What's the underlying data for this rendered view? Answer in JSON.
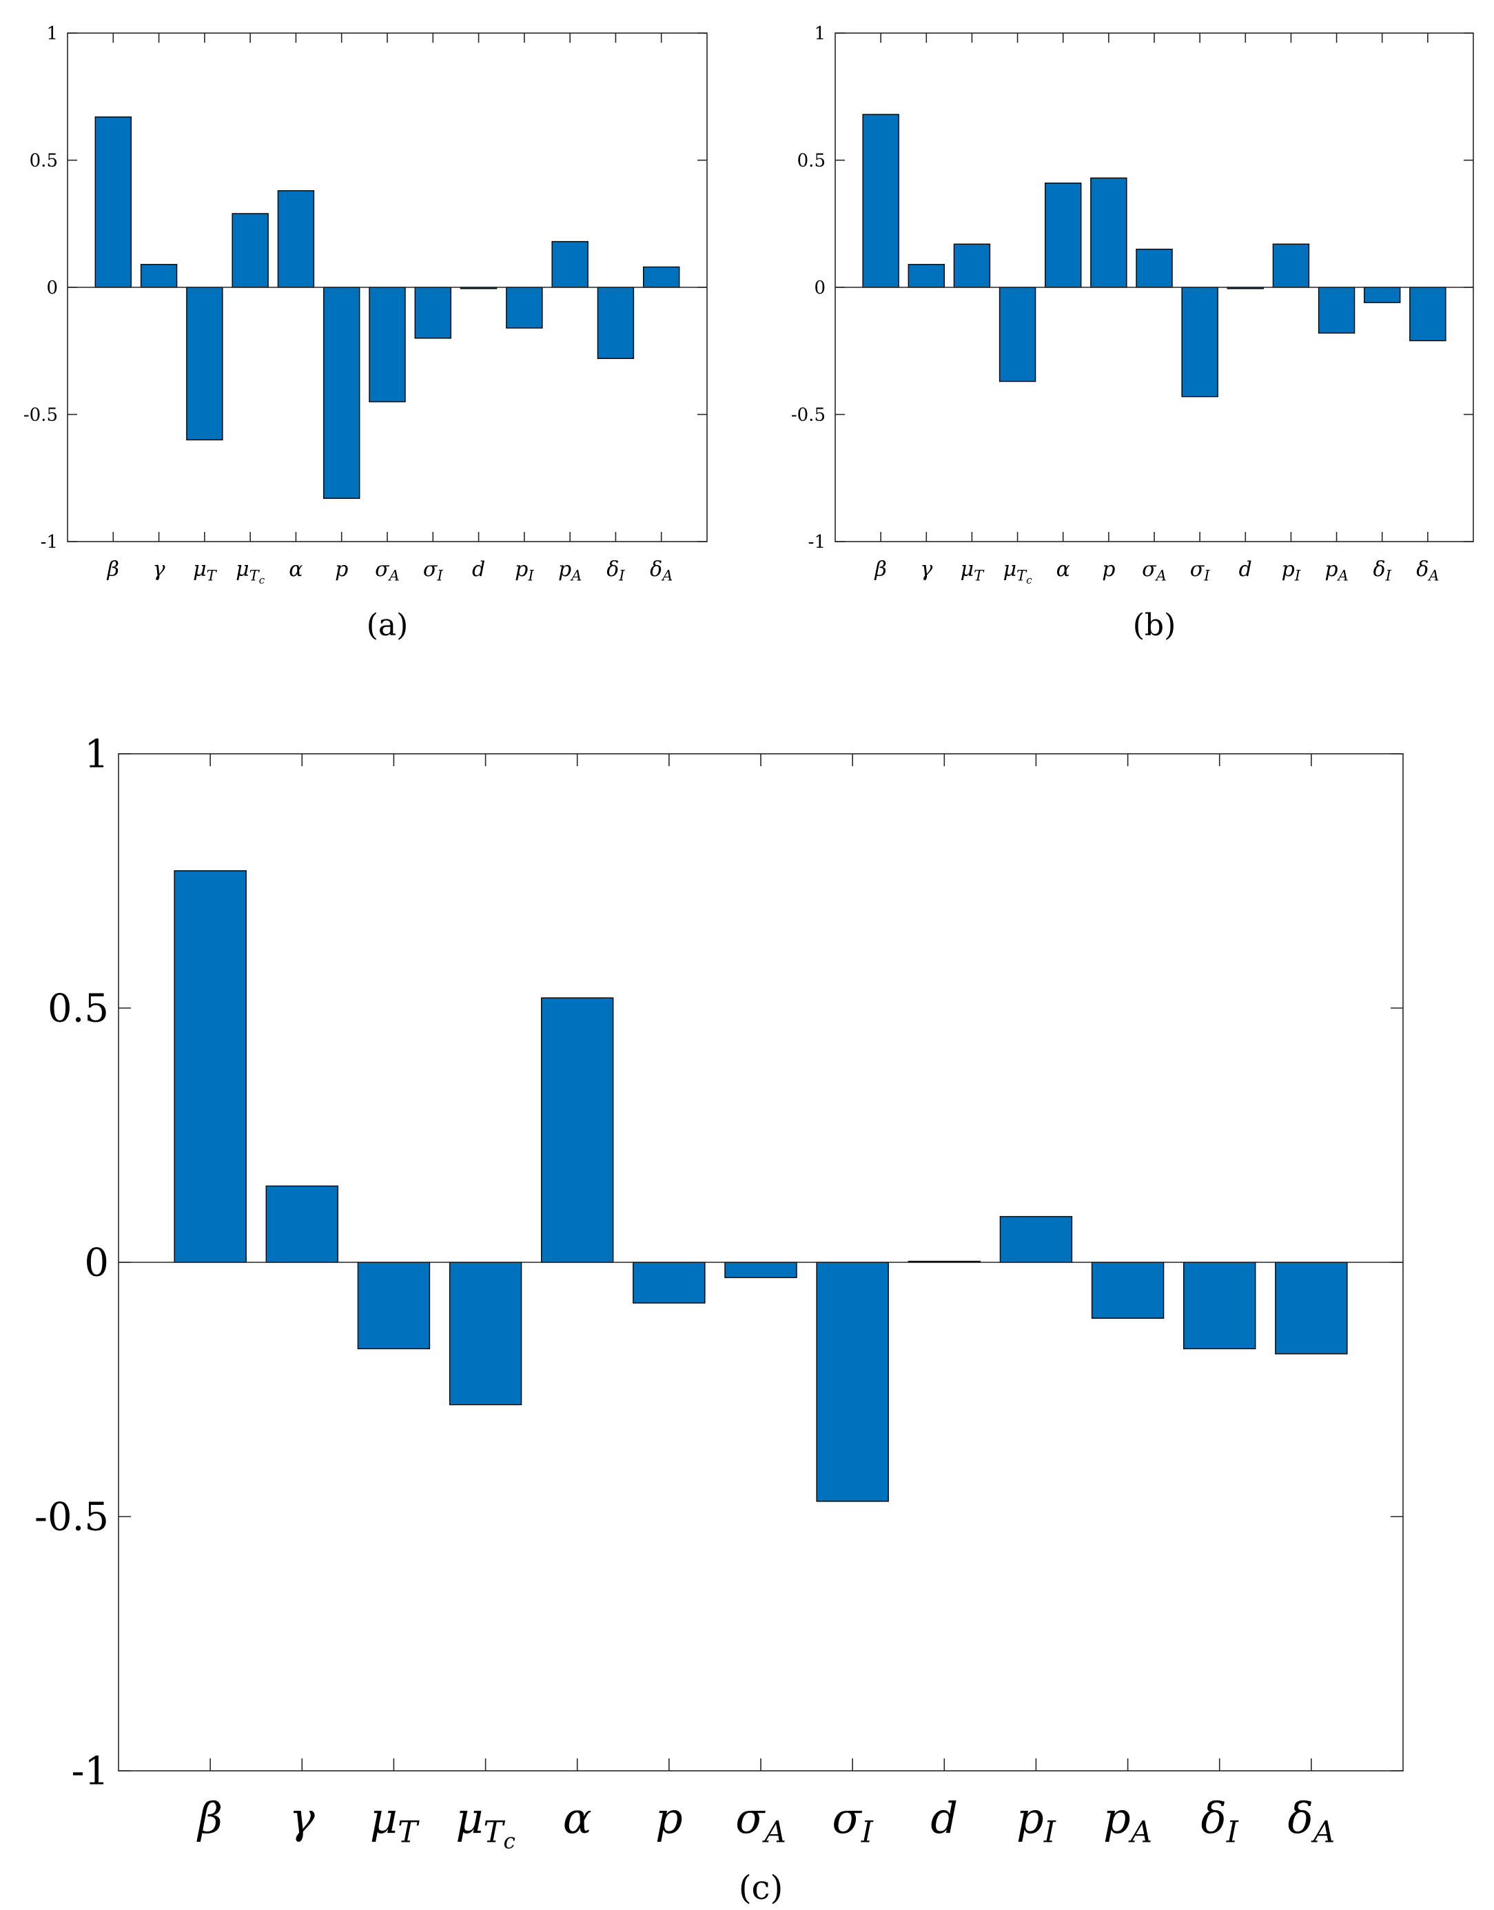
{
  "chart_data": [
    {
      "type": "bar",
      "caption": "(a)",
      "categories": [
        {
          "base": "β",
          "sub": "",
          "subsub": ""
        },
        {
          "base": "γ",
          "sub": "",
          "subsub": ""
        },
        {
          "base": "μ",
          "sub": "T",
          "subsub": ""
        },
        {
          "base": "μ",
          "sub": "T",
          "subsub": "c"
        },
        {
          "base": "α",
          "sub": "",
          "subsub": ""
        },
        {
          "base": "p",
          "sub": "",
          "subsub": ""
        },
        {
          "base": "σ",
          "sub": "A",
          "subsub": ""
        },
        {
          "base": "σ",
          "sub": "I",
          "subsub": ""
        },
        {
          "base": "d",
          "sub": "",
          "subsub": ""
        },
        {
          "base": "p",
          "sub": "I",
          "subsub": ""
        },
        {
          "base": "p",
          "sub": "A",
          "subsub": ""
        },
        {
          "base": "δ",
          "sub": "I",
          "subsub": ""
        },
        {
          "base": "δ",
          "sub": "A",
          "subsub": ""
        }
      ],
      "values": [
        0.67,
        0.09,
        -0.6,
        0.29,
        0.38,
        -0.83,
        -0.45,
        -0.2,
        -0.005,
        -0.16,
        0.18,
        -0.28,
        0.08
      ],
      "ylim": [
        -1,
        1
      ],
      "yticks": [
        -1,
        -0.5,
        0,
        0.5,
        1
      ],
      "ytick_labels": [
        "-1",
        "-0.5",
        "0",
        "0.5",
        "1"
      ],
      "bar_color": "#0072BD",
      "grid": false
    },
    {
      "type": "bar",
      "caption": "(b)",
      "categories": [
        {
          "base": "β",
          "sub": "",
          "subsub": ""
        },
        {
          "base": "γ",
          "sub": "",
          "subsub": ""
        },
        {
          "base": "μ",
          "sub": "T",
          "subsub": ""
        },
        {
          "base": "μ",
          "sub": "T",
          "subsub": "c"
        },
        {
          "base": "α",
          "sub": "",
          "subsub": ""
        },
        {
          "base": "p",
          "sub": "",
          "subsub": ""
        },
        {
          "base": "σ",
          "sub": "A",
          "subsub": ""
        },
        {
          "base": "σ",
          "sub": "I",
          "subsub": ""
        },
        {
          "base": "d",
          "sub": "",
          "subsub": ""
        },
        {
          "base": "p",
          "sub": "I",
          "subsub": ""
        },
        {
          "base": "p",
          "sub": "A",
          "subsub": ""
        },
        {
          "base": "δ",
          "sub": "I",
          "subsub": ""
        },
        {
          "base": "δ",
          "sub": "A",
          "subsub": ""
        }
      ],
      "values": [
        0.68,
        0.09,
        0.17,
        -0.37,
        0.41,
        0.43,
        0.15,
        -0.43,
        -0.005,
        0.17,
        -0.18,
        -0.06,
        -0.21
      ],
      "ylim": [
        -1,
        1
      ],
      "yticks": [
        -1,
        -0.5,
        0,
        0.5,
        1
      ],
      "ytick_labels": [
        "-1",
        "-0.5",
        "0",
        "0.5",
        "1"
      ],
      "bar_color": "#0072BD",
      "grid": false
    },
    {
      "type": "bar",
      "caption": "(c)",
      "categories": [
        {
          "base": "β",
          "sub": "",
          "subsub": ""
        },
        {
          "base": "γ",
          "sub": "",
          "subsub": ""
        },
        {
          "base": "μ",
          "sub": "T",
          "subsub": ""
        },
        {
          "base": "μ",
          "sub": "T",
          "subsub": "c"
        },
        {
          "base": "α",
          "sub": "",
          "subsub": ""
        },
        {
          "base": "p",
          "sub": "",
          "subsub": ""
        },
        {
          "base": "σ",
          "sub": "A",
          "subsub": ""
        },
        {
          "base": "σ",
          "sub": "I",
          "subsub": ""
        },
        {
          "base": "d",
          "sub": "",
          "subsub": ""
        },
        {
          "base": "p",
          "sub": "I",
          "subsub": ""
        },
        {
          "base": "p",
          "sub": "A",
          "subsub": ""
        },
        {
          "base": "δ",
          "sub": "I",
          "subsub": ""
        },
        {
          "base": "δ",
          "sub": "A",
          "subsub": ""
        }
      ],
      "values": [
        0.77,
        0.15,
        -0.17,
        -0.28,
        0.52,
        -0.08,
        -0.03,
        -0.47,
        0.002,
        0.09,
        -0.11,
        -0.17,
        -0.18
      ],
      "ylim": [
        -1,
        1
      ],
      "yticks": [
        -1,
        -0.5,
        0,
        0.5,
        1
      ],
      "ytick_labels": [
        "-1",
        "-0.5",
        "0",
        "0.5",
        "1"
      ],
      "bar_color": "#0072BD",
      "grid": false
    }
  ]
}
